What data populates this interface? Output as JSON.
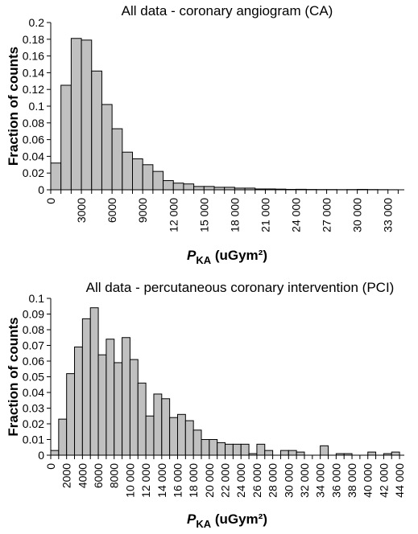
{
  "chart_data": [
    {
      "type": "bar",
      "title": "All data - coronary angiogram (CA)",
      "ylabel": "Fraction of counts",
      "xlabel_main": "P",
      "xlabel_sub": "KA",
      "xlabel_unit": " (uGym²)",
      "bin_width": 1000,
      "x_start": 0,
      "ylim": [
        0,
        0.2
      ],
      "yticks": [
        "0",
        "0.02",
        "0.04",
        "0.06",
        "0.08",
        "0.1",
        "0.12",
        "0.14",
        "0.16",
        "0.18",
        "0.2"
      ],
      "xticks": [
        "0",
        "3000",
        "6000",
        "9000",
        "12 000",
        "15 000",
        "18 000",
        "21 000",
        "24 000",
        "27 000",
        "30 000",
        "33 000"
      ],
      "values": [
        0.032,
        0.125,
        0.181,
        0.179,
        0.142,
        0.102,
        0.073,
        0.045,
        0.037,
        0.03,
        0.022,
        0.011,
        0.008,
        0.007,
        0.004,
        0.004,
        0.003,
        0.003,
        0.002,
        0.002,
        0.001,
        0.001,
        0.0008,
        0.0005,
        0.0006,
        0.0004,
        0.0003,
        0.0003,
        0.0002,
        0.0003,
        0.0005,
        0.0003,
        0.0002,
        0.0001
      ]
    },
    {
      "type": "bar",
      "title": "All data - percutaneous coronary intervention (PCI)",
      "ylabel": "Fraction of counts",
      "xlabel_main": "P",
      "xlabel_sub": "KA",
      "xlabel_unit": " (uGym²)",
      "bin_width": 1000,
      "x_start": 0,
      "ylim": [
        0,
        0.1
      ],
      "yticks": [
        "0",
        "0.01",
        "0.02",
        "0.03",
        "0.04",
        "0.05",
        "0.06",
        "0.07",
        "0.08",
        "0.09",
        "0.1"
      ],
      "xticks": [
        "0",
        "2000",
        "4000",
        "6000",
        "8000",
        "10 000",
        "12 000",
        "14 000",
        "16 000",
        "18 000",
        "20 000",
        "22 000",
        "24 000",
        "26 000",
        "28 000",
        "30 000",
        "32 000",
        "34 000",
        "36 000",
        "38 000",
        "40 000",
        "42 000",
        "44 000"
      ],
      "values": [
        0.003,
        0.023,
        0.052,
        0.069,
        0.087,
        0.094,
        0.064,
        0.074,
        0.059,
        0.075,
        0.061,
        0.046,
        0.025,
        0.039,
        0.036,
        0.024,
        0.026,
        0.022,
        0.016,
        0.01,
        0.01,
        0.008,
        0.007,
        0.007,
        0.007,
        0.001,
        0.007,
        0.003,
        0.0,
        0.003,
        0.003,
        0.002,
        0.0,
        0.0,
        0.006,
        0.0,
        0.001,
        0.001,
        0.0,
        0.0,
        0.002,
        0.0,
        0.001,
        0.002
      ]
    }
  ]
}
